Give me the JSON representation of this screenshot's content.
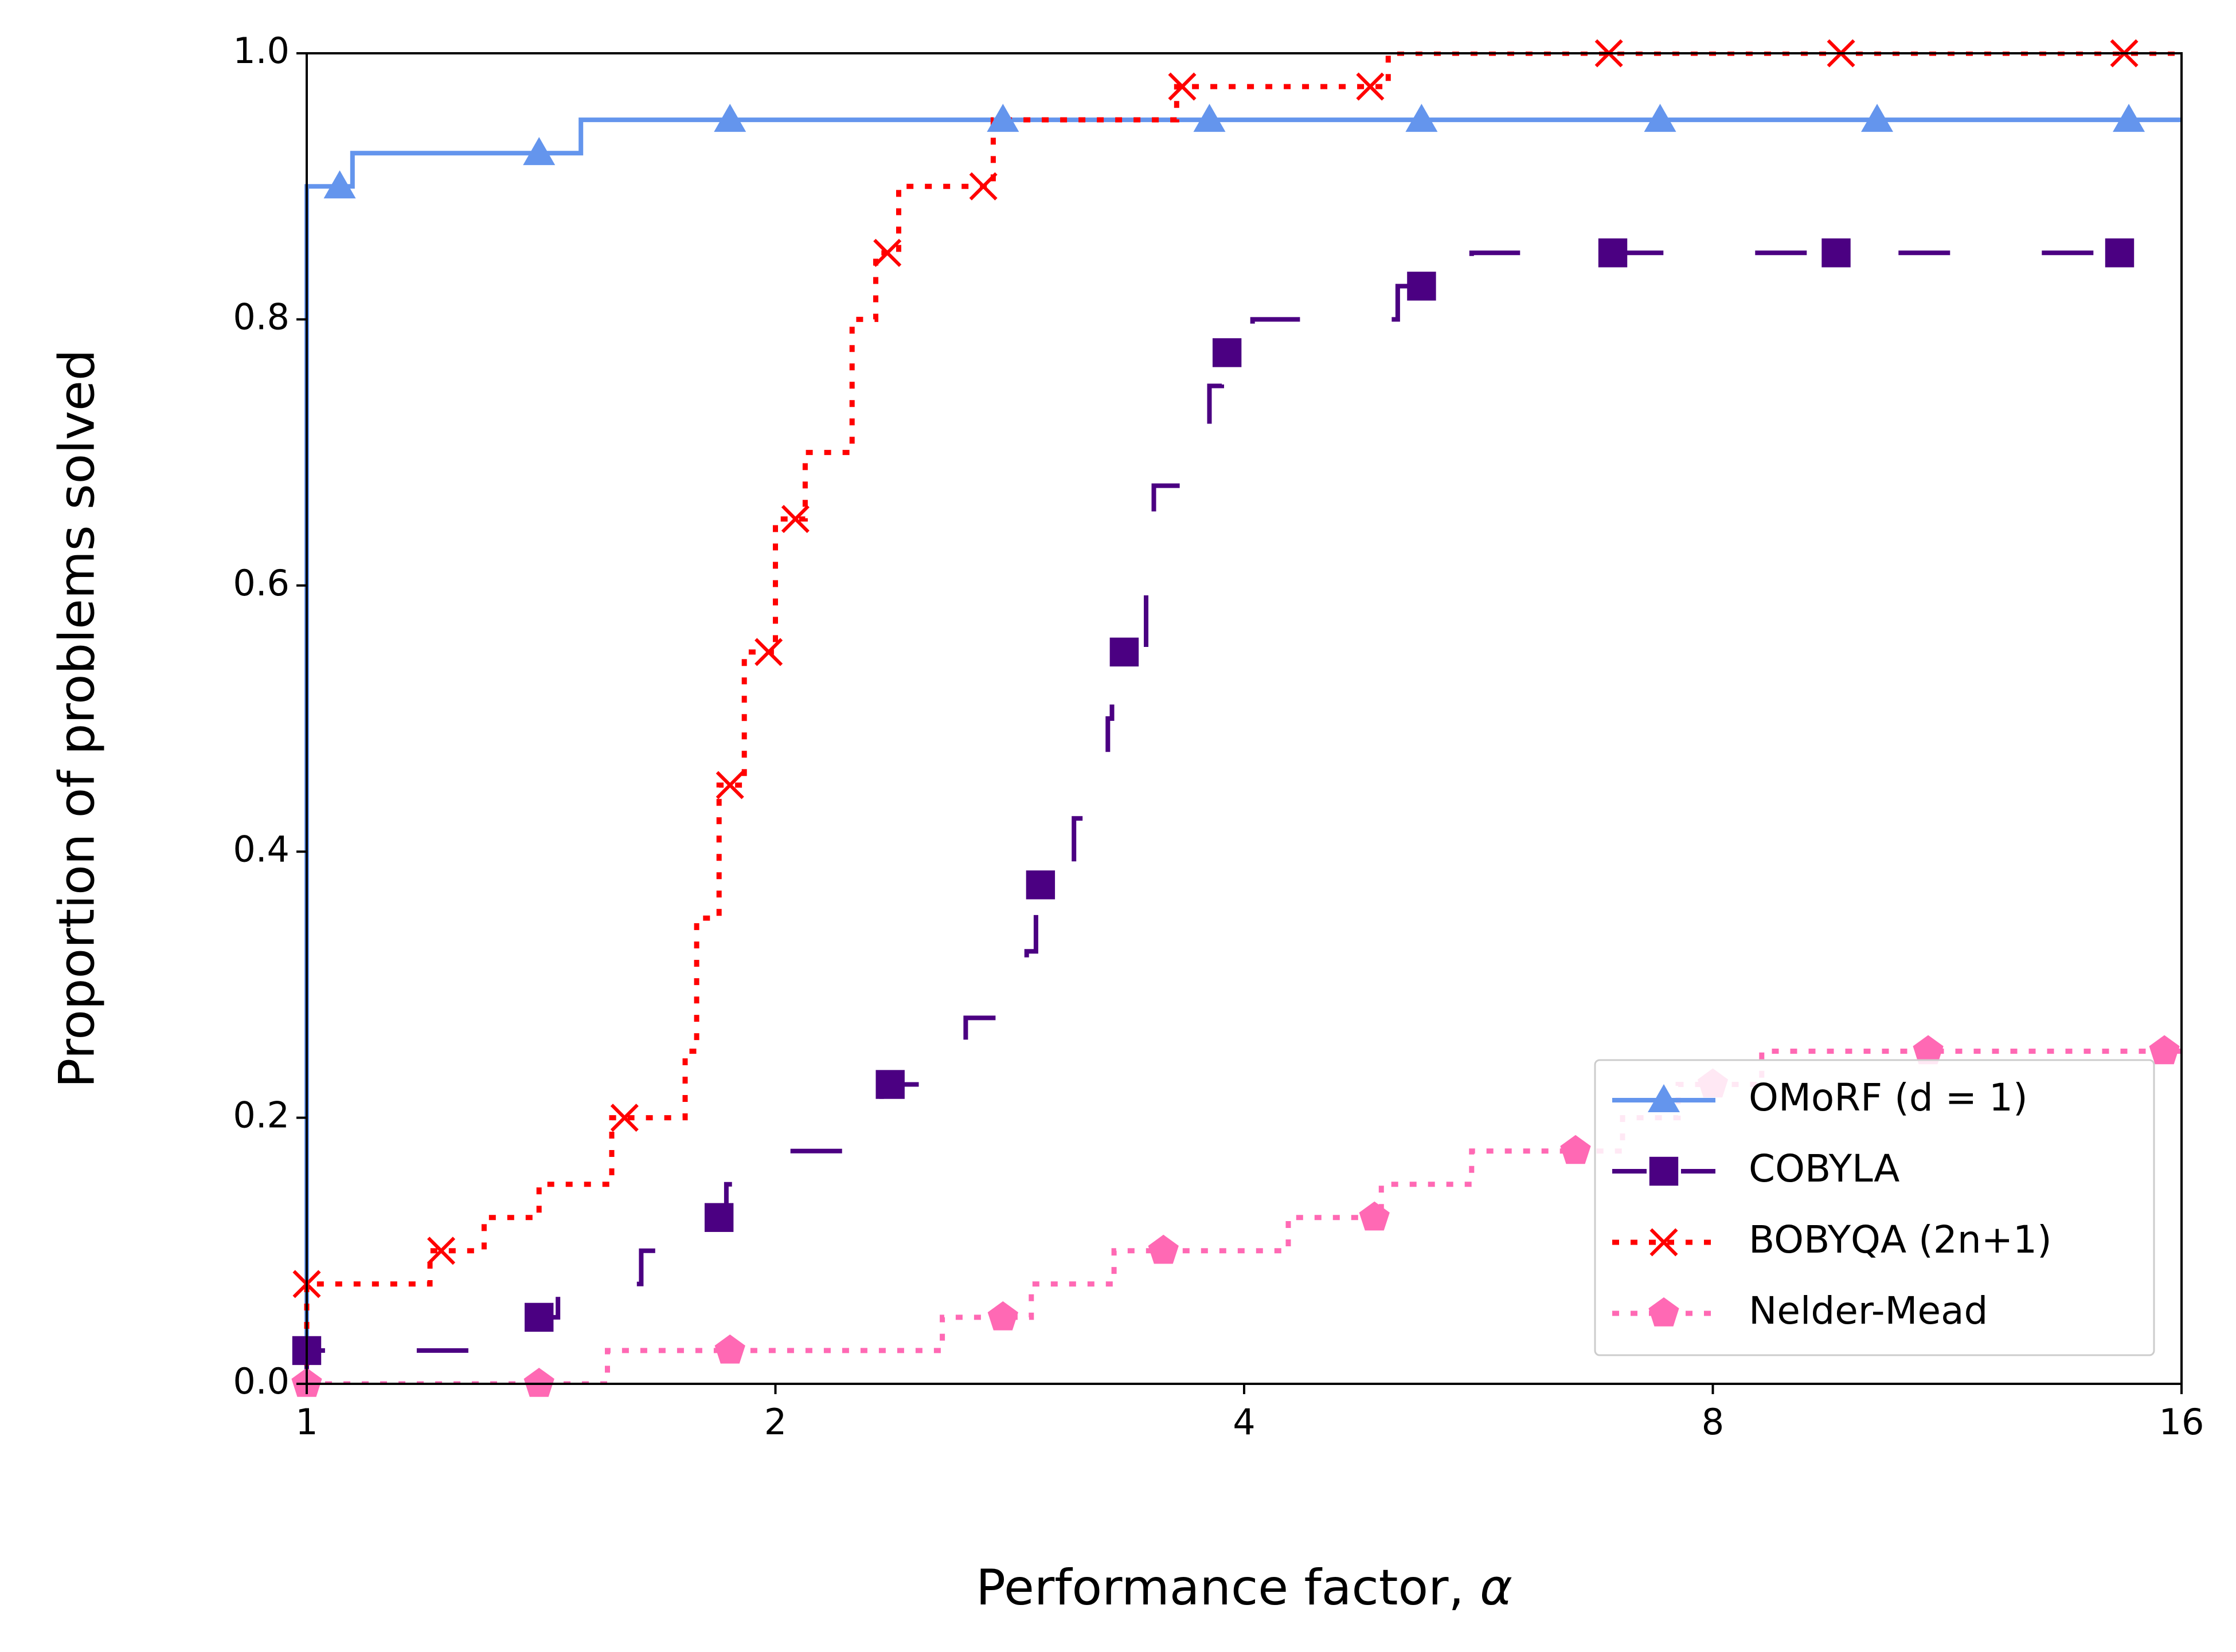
{
  "chart_data": {
    "type": "line",
    "title": "",
    "xlabel": "Performance factor, ",
    "xlabel_symbol": "α",
    "ylabel": "Proportion of problems solved",
    "x_scale": "log2",
    "xlim": [
      1,
      16
    ],
    "ylim": [
      0,
      1
    ],
    "x_ticks": [
      1,
      2,
      4,
      8,
      16
    ],
    "x_tick_labels": [
      "1",
      "2",
      "4",
      "8",
      "16"
    ],
    "y_ticks": [
      0,
      0.2,
      0.4,
      0.6,
      0.8,
      1.0
    ],
    "y_tick_labels": [
      "0.0",
      "0.2",
      "0.4",
      "0.6",
      "0.8",
      "1.0"
    ],
    "legend_position": "lower-right",
    "series": [
      {
        "name": "OMoRF (d = 1)",
        "color": "#6495ed",
        "line_style": "solid",
        "marker": "triangle",
        "steps": [
          [
            1,
            0.9
          ],
          [
            1.07,
            0.925
          ],
          [
            1.5,
            0.95
          ],
          [
            16,
            0.95
          ]
        ],
        "marker_x": [
          1.05,
          1.41,
          1.87,
          2.8,
          3.8,
          5.2,
          7.4,
          10.2,
          14.8
        ]
      },
      {
        "name": "COBYLA",
        "color": "#4b0082",
        "line_style": "dashed",
        "marker": "square",
        "steps": [
          [
            1,
            0.025
          ],
          [
            1.3,
            0.05
          ],
          [
            1.45,
            0.075
          ],
          [
            1.64,
            0.1
          ],
          [
            1.74,
            0.125
          ],
          [
            1.86,
            0.15
          ],
          [
            2.03,
            0.175
          ],
          [
            2.22,
            0.2
          ],
          [
            2.34,
            0.225
          ],
          [
            2.65,
            0.275
          ],
          [
            2.9,
            0.325
          ],
          [
            2.94,
            0.375
          ],
          [
            3.11,
            0.425
          ],
          [
            3.27,
            0.5
          ],
          [
            3.29,
            0.55
          ],
          [
            3.46,
            0.6
          ],
          [
            3.5,
            0.675
          ],
          [
            3.8,
            0.75
          ],
          [
            3.87,
            0.775
          ],
          [
            4.05,
            0.8
          ],
          [
            5.02,
            0.825
          ],
          [
            5.6,
            0.85
          ],
          [
            16,
            0.85
          ]
        ],
        "marker_x": [
          1,
          1.41,
          1.84,
          2.37,
          2.96,
          3.35,
          3.9,
          5.2,
          6.9,
          9.6,
          14.6
        ]
      },
      {
        "name": "BOBYQA (2n+1)",
        "color": "#ff0000",
        "line_style": "dotted",
        "marker": "x",
        "steps": [
          [
            1,
            0.075
          ],
          [
            1.2,
            0.1
          ],
          [
            1.3,
            0.125
          ],
          [
            1.41,
            0.15
          ],
          [
            1.57,
            0.2
          ],
          [
            1.75,
            0.25
          ],
          [
            1.78,
            0.35
          ],
          [
            1.84,
            0.45
          ],
          [
            1.91,
            0.55
          ],
          [
            2.0,
            0.65
          ],
          [
            2.09,
            0.7
          ],
          [
            2.24,
            0.8
          ],
          [
            2.32,
            0.85
          ],
          [
            2.4,
            0.9
          ],
          [
            2.76,
            0.95
          ],
          [
            3.62,
            0.975
          ],
          [
            4.95,
            1.0
          ],
          [
            16,
            1.0
          ]
        ],
        "marker_x": [
          1,
          1.22,
          1.6,
          1.87,
          1.98,
          2.06,
          2.36,
          2.72,
          3.65,
          4.82,
          6.86,
          9.67,
          14.7
        ]
      },
      {
        "name": "Nelder-Mead",
        "color": "#ff69b4",
        "line_style": "dotted",
        "marker": "pentagon",
        "steps": [
          [
            1,
            0
          ],
          [
            1.56,
            0.025
          ],
          [
            2.56,
            0.05
          ],
          [
            2.92,
            0.075
          ],
          [
            3.3,
            0.1
          ],
          [
            4.27,
            0.125
          ],
          [
            4.9,
            0.15
          ],
          [
            5.6,
            0.175
          ],
          [
            7.0,
            0.2
          ],
          [
            7.6,
            0.225
          ],
          [
            8.6,
            0.25
          ],
          [
            16,
            0.25
          ]
        ],
        "marker_x": [
          1,
          1.41,
          1.87,
          2.8,
          3.55,
          4.85,
          6.53,
          8.0,
          11.0,
          15.6
        ]
      }
    ]
  }
}
